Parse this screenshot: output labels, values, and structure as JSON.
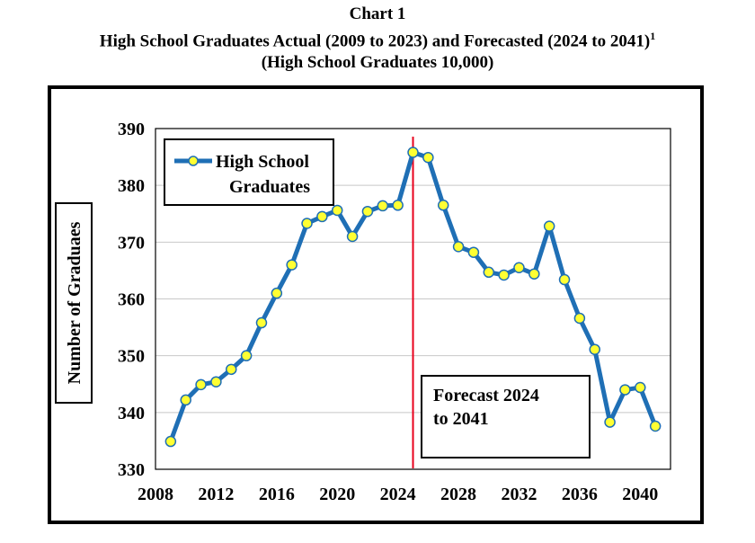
{
  "title": {
    "line1": "Chart 1",
    "line2": "High School Graduates Actual (2009 to 2023) and Forecasted (2024 to 2041)",
    "footnote_marker": "1",
    "line3": "(High School Graduates 10,000)"
  },
  "chart_data": {
    "type": "line",
    "ylabel": "Number of Graduaes",
    "xlabel": "",
    "xlim": [
      2008,
      2042
    ],
    "ylim": [
      330,
      390
    ],
    "x_ticks": [
      2008,
      2012,
      2016,
      2020,
      2024,
      2028,
      2032,
      2036,
      2040
    ],
    "y_ticks": [
      330,
      340,
      350,
      360,
      370,
      380,
      390
    ],
    "grid": "horizontal",
    "legend_position": "top-left",
    "series": [
      {
        "name": "High School Graduates",
        "color": "#1f6fb5",
        "marker_color": "#ffff33",
        "x": [
          2009,
          2010,
          2011,
          2012,
          2013,
          2014,
          2015,
          2016,
          2017,
          2018,
          2019,
          2020,
          2021,
          2022,
          2023,
          2024,
          2025,
          2026,
          2027,
          2028,
          2029,
          2030,
          2031,
          2032,
          2033,
          2034,
          2035,
          2036,
          2037,
          2038,
          2039,
          2040,
          2041
        ],
        "values": [
          334.9,
          342.2,
          344.9,
          345.4,
          347.6,
          350.0,
          355.8,
          361.0,
          366.0,
          373.3,
          374.5,
          375.6,
          371.0,
          375.4,
          376.4,
          376.5,
          385.8,
          384.9,
          376.5,
          369.2,
          368.2,
          364.7,
          364.2,
          365.5,
          364.4,
          372.8,
          363.4,
          356.6,
          351.1,
          338.3,
          344.0,
          344.4,
          337.6
        ]
      }
    ],
    "forecast_line": {
      "x": 2025,
      "color": "#e8001c"
    },
    "annotation": "Forecast 2024 to 2041"
  }
}
